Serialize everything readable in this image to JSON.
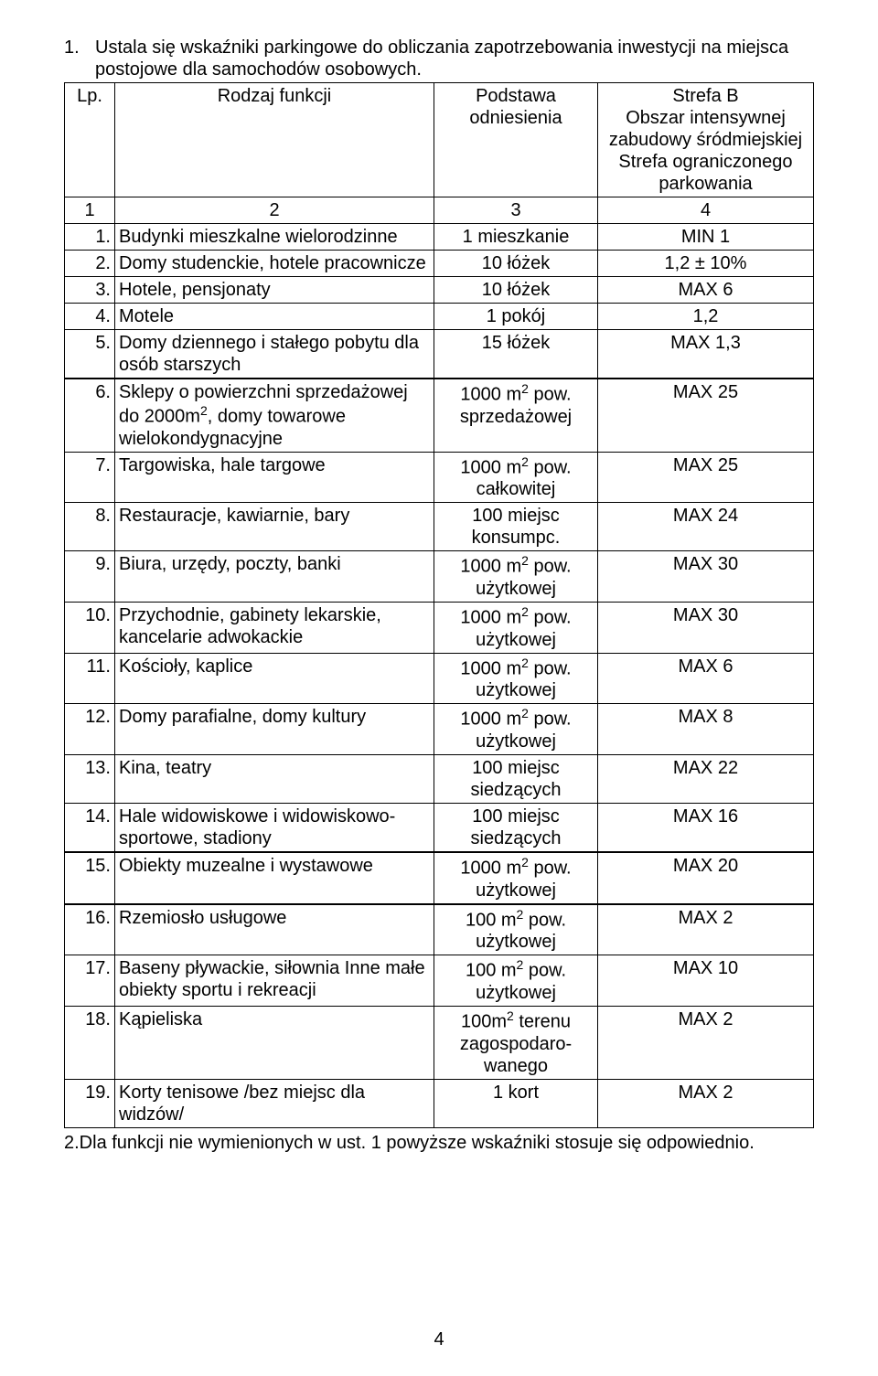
{
  "intro_num": "1.",
  "intro_text": "Ustala się wskaźniki parkingowe do obliczania zapotrzebowania inwestycji na miejsca postojowe dla samochodów osobowych.",
  "header": {
    "lp": "Lp.",
    "func": "Rodzaj funkcji",
    "basis": "Podstawa odniesienia",
    "zone_line1": "Strefa B",
    "zone_line2": "Obszar intensywnej zabudowy śródmiejskiej",
    "zone_line3": "Strefa ograniczonego parkowania",
    "num_row": {
      "c1": "1",
      "c2": "2",
      "c3": "3",
      "c4": "4"
    }
  },
  "rows": [
    {
      "lp": "1.",
      "func": "Budynki mieszkalne wielorodzinne",
      "basis": "1 mieszkanie",
      "zone": "MIN 1"
    },
    {
      "lp": "2.",
      "func": "Domy studenckie, hotele pracownicze",
      "basis": "10 łóżek",
      "zone": "1,2 ± 10%"
    },
    {
      "lp": "3.",
      "func": "Hotele, pensjonaty",
      "basis": "10 łóżek",
      "zone": "MAX 6"
    },
    {
      "lp": "4.",
      "func": "Motele",
      "basis": "1 pokój",
      "zone": "1,2"
    },
    {
      "lp": "5.",
      "func": "Domy dziennego i stałego pobytu dla osób starszych",
      "basis": "15 łóżek",
      "zone": "MAX 1,3"
    },
    {
      "lp": "6.",
      "func_html": "Sklepy o powierzchni sprzedażowej do 2000m<sup>2</sup>, domy towarowe wielokondygnacyjne",
      "basis_html": "1000 m<sup>2</sup> pow. sprzedażowej",
      "zone": "MAX 25",
      "thick": true
    },
    {
      "lp": "7.",
      "func": "Targowiska, hale targowe",
      "basis_html": "1000 m<sup>2</sup> pow. całkowitej",
      "zone": "MAX 25"
    },
    {
      "lp": "8.",
      "func": "Restauracje, kawiarnie, bary",
      "basis": "100 miejsc konsumpc.",
      "zone": "MAX 24"
    },
    {
      "lp": "9.",
      "func": "Biura, urzędy, poczty, banki",
      "basis_html": "1000 m<sup>2</sup> pow. użytkowej",
      "zone": "MAX 30"
    },
    {
      "lp": "10.",
      "func": "Przychodnie, gabinety lekarskie, kancelarie adwokackie",
      "basis_html": "1000 m<sup>2</sup> pow. użytkowej",
      "zone": "MAX 30"
    },
    {
      "lp": "11.",
      "func": "Kościoły, kaplice",
      "basis_html": "1000 m<sup>2</sup> pow. użytkowej",
      "zone": "MAX 6"
    },
    {
      "lp": "12.",
      "func": "Domy parafialne, domy kultury",
      "basis_html": "1000 m<sup>2</sup> pow. użytkowej",
      "zone": "MAX 8"
    },
    {
      "lp": "13.",
      "func": "Kina, teatry",
      "basis": "100 miejsc siedzących",
      "zone": "MAX 22"
    },
    {
      "lp": "14.",
      "func": "Hale widowiskowe i widowiskowo-sportowe, stadiony",
      "basis": "100 miejsc siedzących",
      "zone": "MAX 16"
    },
    {
      "lp": "15.",
      "func": "Obiekty muzealne i wystawowe",
      "basis_html": "1000 m<sup>2</sup> pow. użytkowej",
      "zone": "MAX 20",
      "thick": true
    },
    {
      "lp": "16.",
      "func": "Rzemiosło usługowe",
      "basis_html": "100 m<sup>2</sup> pow. użytkowej",
      "zone": "MAX 2",
      "thick": true
    },
    {
      "lp": "17.",
      "func": "Baseny pływackie, siłownia Inne małe obiekty sportu i rekreacji",
      "basis_html": "100 m<sup>2</sup> pow. użytkowej",
      "zone": "MAX 10"
    },
    {
      "lp": "18.",
      "func": "Kąpieliska",
      "basis_html": "100m<sup>2</sup> terenu zagospodaro-wanego",
      "zone": "MAX 2"
    },
    {
      "lp": "19.",
      "func": "Korty tenisowe /bez miejsc dla widzów/",
      "basis": "1 kort",
      "zone": "MAX 2"
    }
  ],
  "outro": "2.Dla funkcji nie wymienionych w ust. 1 powyższe wskaźniki stosuje się odpowiednio.",
  "page_number": "4"
}
